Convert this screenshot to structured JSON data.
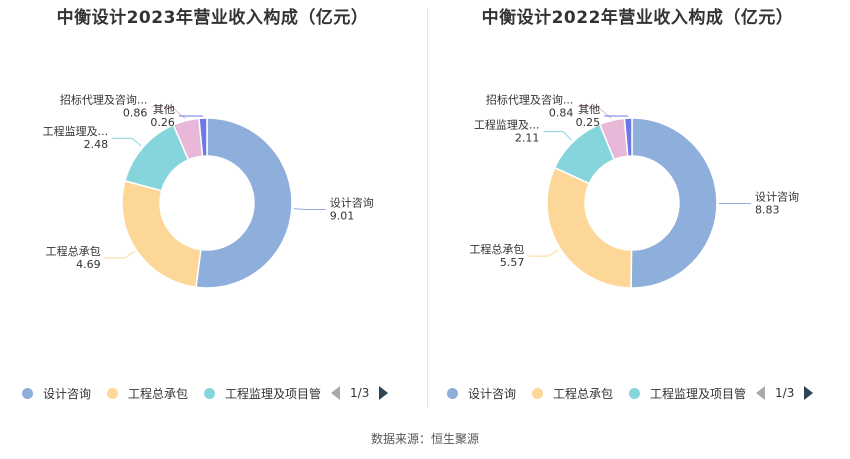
{
  "colors": {
    "series": [
      "#8eaedb",
      "#fdd797",
      "#86d4dc",
      "#e9b8d9",
      "#6b78e6"
    ],
    "pager_inactive": "#aaaaaa",
    "pager_active": "#2f4554"
  },
  "legend_labels": [
    "设计咨询",
    "工程总承包",
    "工程监理及项目管"
  ],
  "pager": {
    "text": "1/3"
  },
  "source": "数据来源：恒生聚源",
  "chart_data": [
    {
      "type": "pie",
      "title": "中衡设计2023年营业收入构成（亿元）",
      "slices": [
        {
          "name": "设计咨询",
          "value": 9.01,
          "display_name": "设计咨询",
          "display_value": "9.01"
        },
        {
          "name": "工程总承包",
          "value": 4.69,
          "display_name": "工程总承包",
          "display_value": "4.69"
        },
        {
          "name": "工程监理及项目管理",
          "value": 2.48,
          "display_name": "工程监理及...",
          "display_value": "2.48"
        },
        {
          "name": "招标代理及咨询",
          "value": 0.86,
          "display_name": "招标代理及咨询...",
          "display_value": "0.86"
        },
        {
          "name": "其他",
          "value": 0.26,
          "display_name": "其他",
          "display_value": "0.26"
        }
      ]
    },
    {
      "type": "pie",
      "title": "中衡设计2022年营业收入构成（亿元）",
      "slices": [
        {
          "name": "设计咨询",
          "value": 8.83,
          "display_name": "设计咨询",
          "display_value": "8.83"
        },
        {
          "name": "工程总承包",
          "value": 5.57,
          "display_name": "工程总承包",
          "display_value": "5.57"
        },
        {
          "name": "工程监理及项目管理",
          "value": 2.11,
          "display_name": "工程监理及...",
          "display_value": "2.11"
        },
        {
          "name": "招标代理及咨询",
          "value": 0.84,
          "display_name": "招标代理及咨询...",
          "display_value": "0.84"
        },
        {
          "name": "其他",
          "value": 0.25,
          "display_name": "其他",
          "display_value": "0.25"
        }
      ]
    }
  ]
}
